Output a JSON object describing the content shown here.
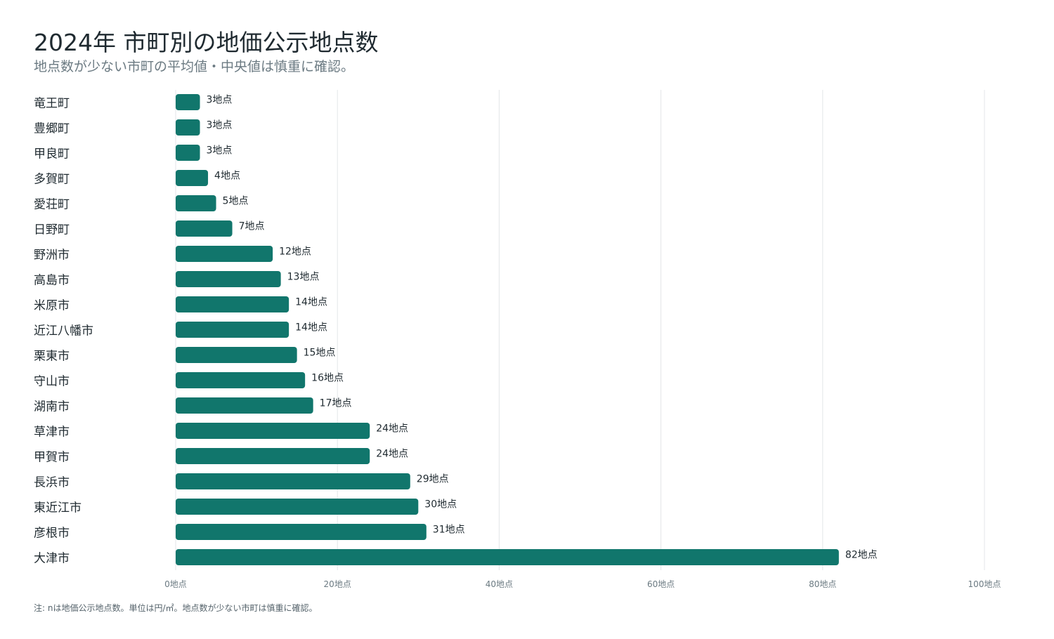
{
  "header": {
    "title": "2024年 市町別の地価公示地点数",
    "subtitle": "地点数が少ない市町の平均値・中央値は慎重に確認。"
  },
  "footer": {
    "note": "注: nは地価公示地点数。単位は円/㎡。地点数が少ない市町は慎重に確認。"
  },
  "colors": {
    "bar": "#11766c",
    "grid": "#e3e6e8"
  },
  "chart_data": {
    "type": "bar",
    "orientation": "horizontal",
    "unit_suffix": "地点",
    "grid": true,
    "xlim": [
      0,
      100
    ],
    "ticks": [
      0,
      20,
      40,
      60,
      80,
      100
    ],
    "tick_labels": [
      "0地点",
      "20地点",
      "40地点",
      "60地点",
      "80地点",
      "100地点"
    ],
    "categories": [
      "竜王町",
      "豊郷町",
      "甲良町",
      "多賀町",
      "愛荘町",
      "日野町",
      "野洲市",
      "高島市",
      "米原市",
      "近江八幡市",
      "栗東市",
      "守山市",
      "湖南市",
      "草津市",
      "甲賀市",
      "長浜市",
      "東近江市",
      "彦根市",
      "大津市"
    ],
    "values": [
      3,
      3,
      3,
      4,
      5,
      7,
      12,
      13,
      14,
      14,
      15,
      16,
      17,
      24,
      24,
      29,
      30,
      31,
      82
    ],
    "data_labels": [
      "3地点",
      "3地点",
      "3地点",
      "4地点",
      "5地点",
      "7地点",
      "12地点",
      "13地点",
      "14地点",
      "14地点",
      "15地点",
      "16地点",
      "17地点",
      "24地点",
      "24地点",
      "29地点",
      "30地点",
      "31地点",
      "82地点"
    ]
  }
}
